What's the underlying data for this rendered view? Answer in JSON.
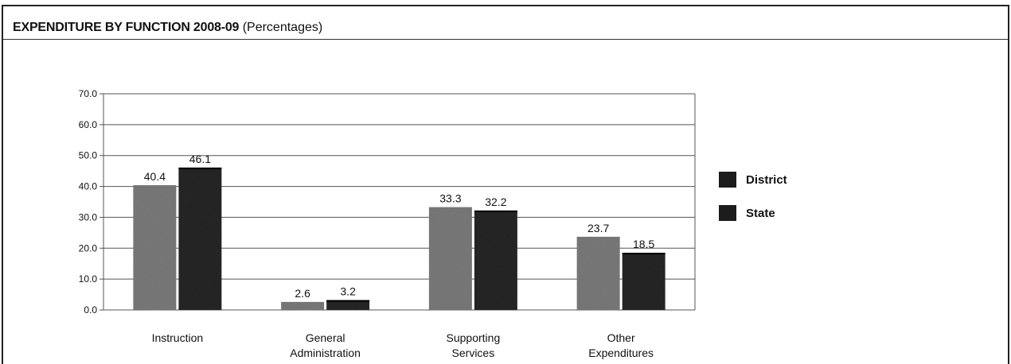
{
  "header": {
    "title_bold": "EXPENDITURE BY FUNCTION 2008-09",
    "title_rest": "(Percentages)"
  },
  "chart_data": {
    "type": "bar",
    "title": "EXPENDITURE BY FUNCTION 2008-09 (Percentages)",
    "categories": [
      [
        "Instruction"
      ],
      [
        "General",
        "Administration"
      ],
      [
        "Supporting",
        "Services"
      ],
      [
        "Other",
        "Expenditures"
      ]
    ],
    "series": [
      {
        "name": "District",
        "values": [
          40.4,
          2.6,
          33.3,
          23.7
        ],
        "labels": [
          "40.4",
          "2.6",
          "33.3",
          "23.7"
        ],
        "color": "#7a7a7a"
      },
      {
        "name": "State",
        "values": [
          46.1,
          3.2,
          32.2,
          18.5
        ],
        "labels": [
          "46.1",
          "3.2",
          "32.2",
          "18.5"
        ],
        "color": "#262626"
      }
    ],
    "yticks": [
      "0.0",
      "10.0",
      "20.0",
      "30.0",
      "40.0",
      "50.0",
      "60.0",
      "70.0"
    ],
    "ylim": [
      0,
      70
    ],
    "grid": true,
    "legend_position": "right",
    "legend_swatch_color": "#1c1c1c"
  }
}
